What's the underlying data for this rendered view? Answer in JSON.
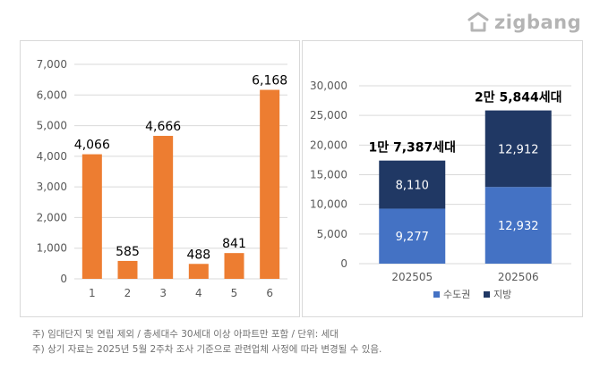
{
  "brand": {
    "logo_text": "zigbang",
    "color": "#b4b4b4"
  },
  "chart_data": [
    {
      "type": "bar",
      "categories": [
        "1",
        "2",
        "3",
        "4",
        "5",
        "6"
      ],
      "values": [
        4066,
        585,
        4666,
        488,
        841,
        6168
      ],
      "data_labels": [
        "4,066",
        "585",
        "4,666",
        "488",
        "841",
        "6,168"
      ],
      "y_ticks": [
        "0",
        "1,000",
        "2,000",
        "3,000",
        "4,000",
        "5,000",
        "6,000",
        "7,000"
      ],
      "ylim": [
        0,
        7000
      ],
      "grid": true,
      "color": "#ED7D31"
    },
    {
      "type": "bar",
      "stacked": true,
      "categories": [
        "202505",
        "202506"
      ],
      "series": [
        {
          "name": "수도권",
          "values": [
            9277,
            12932
          ],
          "labels": [
            "9,277",
            "12,932"
          ],
          "color": "#4472C4"
        },
        {
          "name": "지방",
          "values": [
            8110,
            12912
          ],
          "labels": [
            "8,110",
            "12,912"
          ],
          "color": "#203864"
        }
      ],
      "totals": [
        "1만 7,387세대",
        "2만 5,844세대"
      ],
      "y_ticks": [
        "0",
        "5,000",
        "10,000",
        "15,000",
        "20,000",
        "25,000",
        "30,000"
      ],
      "ylim": [
        0,
        30000
      ],
      "grid": true,
      "legend_position": "bottom"
    }
  ],
  "notes": [
    "주) 임대단지 및 연립 제외 / 총세대수 30세대 이상 아파트만 포함 / 단위: 세대",
    "주) 상기 자료는 2025년 5월 2주차 조사 기준으로 관련업체 사정에 따라 변경될 수 있음."
  ]
}
